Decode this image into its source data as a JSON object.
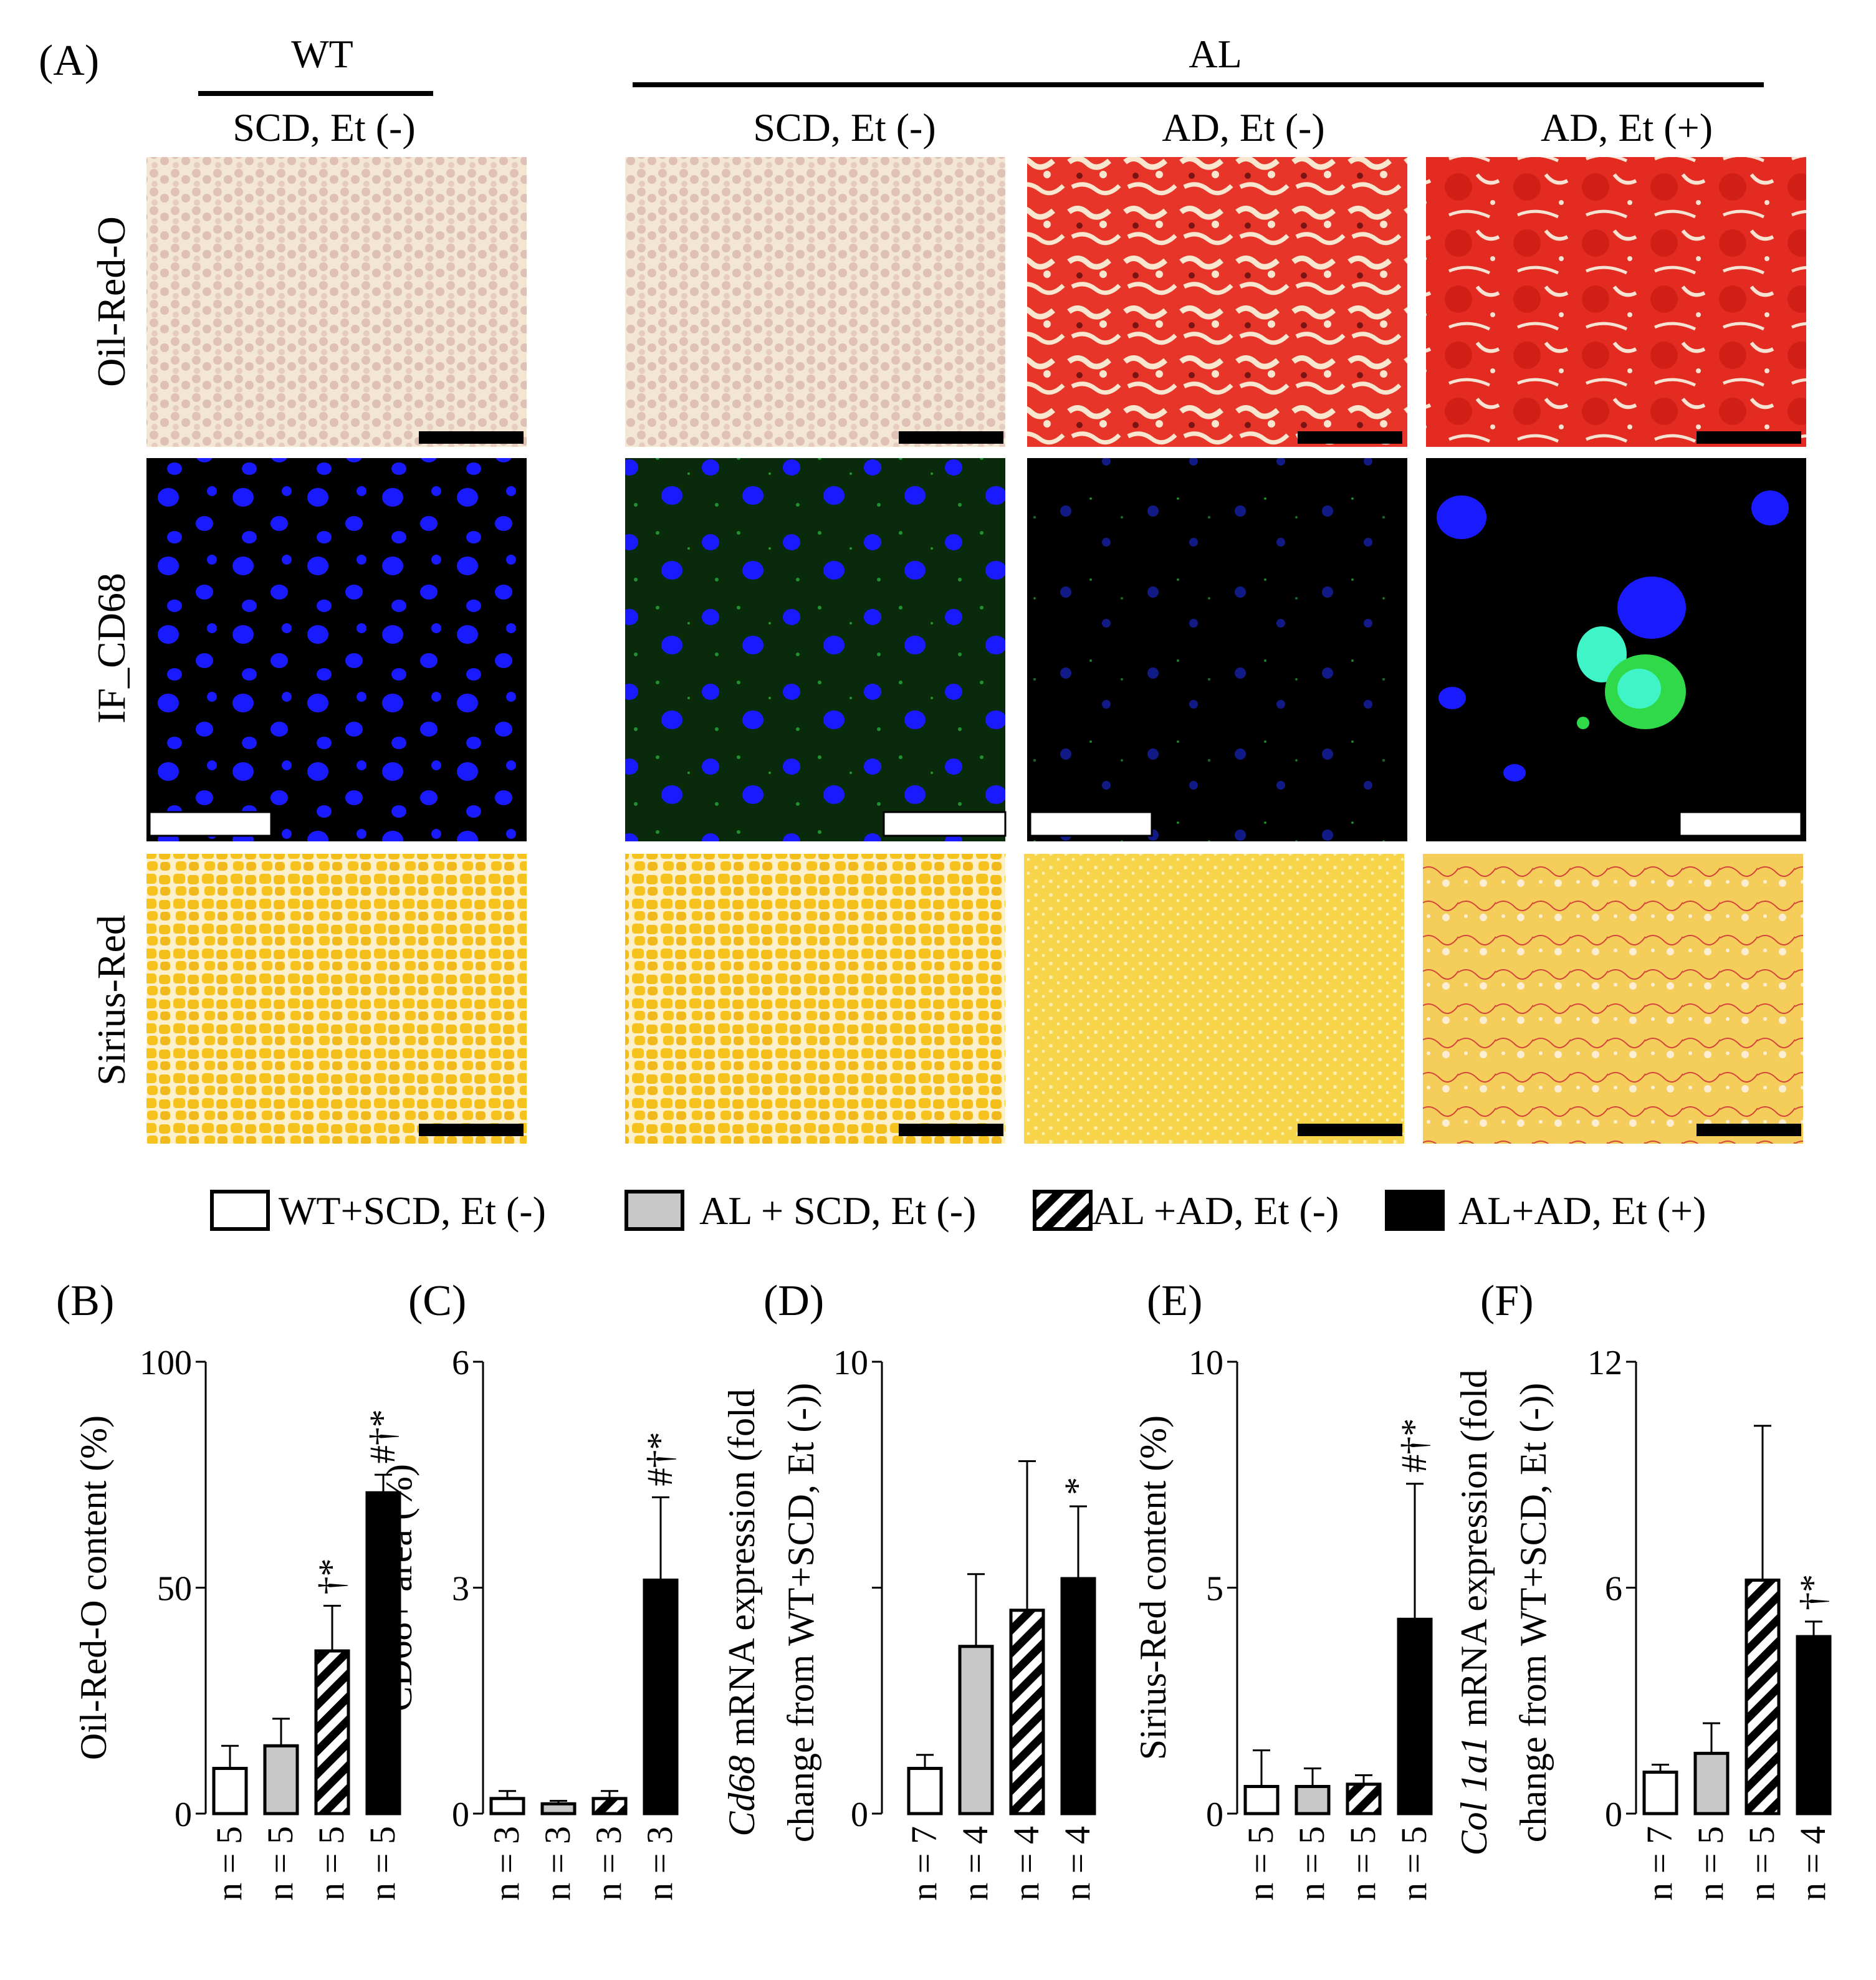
{
  "panel_a": {
    "letter": "(A)",
    "wt_header": "WT",
    "al_header": "AL",
    "columns": [
      "SCD, Et (-)",
      "SCD, Et (-)",
      "AD, Et (-)",
      "AD, Et (+)"
    ],
    "rows": [
      "Oil-Red-O",
      "IF_CD68",
      "Sirius-Red"
    ],
    "colors": {
      "oro_pale": "#f3e6d2",
      "oro_red": "#e8352a",
      "oro_cell": "#c99a9a",
      "if_bg": "#000000",
      "if_nucleus": "#1a1aff",
      "if_green": "#2fd94a",
      "if_cyan": "#3ff5c8",
      "sirius_yellow": "#f6c21e",
      "sirius_pale": "#fbf0c9",
      "sirius_red": "#d4443a"
    }
  },
  "legend": {
    "items": [
      {
        "label": "WT+SCD, Et (-)",
        "pattern": "white"
      },
      {
        "label": "AL + SCD, Et (-)",
        "pattern": "gray"
      },
      {
        "label": "AL +AD, Et (-)",
        "pattern": "hatch"
      },
      {
        "label": "AL+AD, Et (+)",
        "pattern": "black"
      }
    ]
  },
  "chart_data": [
    {
      "type": "bar",
      "letter": "(B)",
      "ylabel": "Oil-Red-O content (%)",
      "ylim": [
        0,
        100
      ],
      "yticks": [
        "0",
        "50",
        "100"
      ],
      "categories": [
        "n = 5",
        "n = 5",
        "n = 5",
        "n = 5"
      ],
      "values": [
        10,
        15,
        36,
        71
      ],
      "errors": [
        5,
        6,
        10,
        4
      ],
      "annotations": [
        "",
        "",
        "†*",
        "#†*"
      ]
    },
    {
      "type": "bar",
      "letter": "(C)",
      "ylabel": "CD68+ area (%)",
      "ylim": [
        0,
        6
      ],
      "yticks": [
        "0",
        "3",
        "6"
      ],
      "categories": [
        "n = 3",
        "n = 3",
        "n = 3",
        "n = 3"
      ],
      "values": [
        0.2,
        0.13,
        0.2,
        3.1
      ],
      "errors": [
        0.1,
        0.04,
        0.1,
        1.1
      ],
      "annotations": [
        "",
        "",
        "",
        "#†*"
      ]
    },
    {
      "type": "bar",
      "letter": "(D)",
      "ylabel_italic": "Cd68",
      "ylabel_line1": " mRNA expression (fold",
      "ylabel_line2": "change from WT+SCD, Et (-))",
      "ylim": [
        0,
        10
      ],
      "yticks": [
        "0",
        "10"
      ],
      "categories": [
        "n = 7",
        "n = 4",
        "n = 4",
        "n = 4"
      ],
      "values": [
        1,
        3.7,
        4.5,
        5.2
      ],
      "errors": [
        0.3,
        1.6,
        3.3,
        1.6
      ],
      "annotations": [
        "",
        "",
        "",
        "*"
      ]
    },
    {
      "type": "bar",
      "letter": "(E)",
      "ylabel": "Sirius-Red content (%)",
      "ylim": [
        0,
        10
      ],
      "yticks": [
        "0",
        "5",
        "10"
      ],
      "categories": [
        "n = 5",
        "n = 5",
        "n = 5",
        "n = 5"
      ],
      "values": [
        0.6,
        0.6,
        0.65,
        4.3
      ],
      "errors": [
        0.8,
        0.4,
        0.2,
        3.0
      ],
      "annotations": [
        "",
        "",
        "",
        "#†*"
      ]
    },
    {
      "type": "bar",
      "letter": "(F)",
      "ylabel_italic": "Col 1a1",
      "ylabel_line1": " mRNA expression (fold",
      "ylabel_line2": "change from WT+SCD, Et (-))",
      "ylim": [
        0,
        12
      ],
      "yticks": [
        "0",
        "6",
        "12"
      ],
      "categories": [
        "n = 7",
        "n = 5",
        "n = 5",
        "n = 4"
      ],
      "values": [
        1.1,
        1.6,
        6.2,
        4.7
      ],
      "errors": [
        0.2,
        0.8,
        4.1,
        0.4
      ],
      "annotations": [
        "",
        "",
        "",
        "†*"
      ]
    }
  ]
}
